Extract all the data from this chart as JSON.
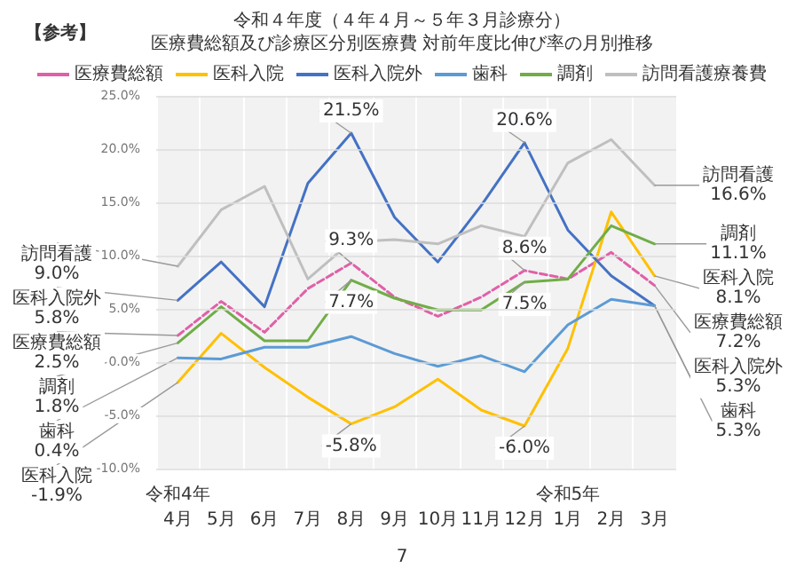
{
  "chart_data": {
    "type": "line",
    "title": "令和４年度（４年４月～５年３月診療分）",
    "subtitle": "医療費総額及び診療区分別医療費 対前年度比伸び率の月別推移",
    "annotations": [
      "【参考】",
      "7"
    ],
    "categories": [
      "令和4年\n4月",
      "5月",
      "6月",
      "7月",
      "8月",
      "9月",
      "10月",
      "11月",
      "12月",
      "令和5年\n1月",
      "2月",
      "3月"
    ],
    "series": [
      {
        "name": "医療費総額",
        "color": "#e060a8",
        "line_style": "dashed",
        "values": [
          2.5,
          5.7,
          2.8,
          6.9,
          9.3,
          6.1,
          4.3,
          6.1,
          8.6,
          7.8,
          10.3,
          7.2
        ],
        "value_labels": [
          "医療費総額\n2.5%",
          null,
          null,
          null,
          "9.3%",
          null,
          null,
          null,
          "8.6%",
          null,
          null,
          "医療費総額\n7.2%"
        ]
      },
      {
        "name": "医科入院",
        "color": "#ffc000",
        "values": [
          -1.9,
          2.7,
          -0.5,
          -3.3,
          -5.8,
          -4.2,
          -1.6,
          -4.5,
          -6.0,
          1.3,
          14.1,
          8.1
        ],
        "value_labels": [
          "医科入院\n-1.9%",
          null,
          null,
          null,
          "-5.8%",
          null,
          null,
          null,
          "-6.0%",
          null,
          null,
          "医科入院\n8.1%"
        ]
      },
      {
        "name": "医科入院外",
        "color": "#4472c4",
        "values": [
          5.8,
          9.4,
          5.2,
          16.8,
          21.5,
          13.6,
          9.4,
          14.7,
          20.6,
          12.4,
          8.1,
          5.3
        ],
        "value_labels": [
          "医科入院外\n5.8%",
          null,
          null,
          null,
          "21.5%",
          null,
          null,
          null,
          "20.6%",
          null,
          null,
          "医科入院外\n5.3%"
        ]
      },
      {
        "name": "歯科",
        "color": "#5b9bd5",
        "values": [
          0.4,
          0.3,
          1.4,
          1.4,
          2.4,
          0.8,
          -0.4,
          0.6,
          -0.9,
          3.5,
          5.9,
          5.3
        ],
        "value_labels": [
          "歯科\n0.4%",
          null,
          null,
          null,
          null,
          null,
          null,
          null,
          null,
          null,
          null,
          "歯科\n5.3%"
        ]
      },
      {
        "name": "調剤",
        "color": "#70ad47",
        "values": [
          1.8,
          5.2,
          2.0,
          2.0,
          7.7,
          6.0,
          4.9,
          4.9,
          7.5,
          7.8,
          12.8,
          11.1
        ],
        "value_labels": [
          "調剤\n1.8%",
          null,
          null,
          null,
          "7.7%",
          null,
          null,
          null,
          "7.5%",
          null,
          null,
          "調剤\n11.1%"
        ]
      },
      {
        "name": "訪問看護療養費",
        "color": "#bfbfbf",
        "values": [
          9.0,
          14.3,
          16.5,
          7.8,
          11.3,
          11.5,
          11.1,
          12.8,
          11.8,
          18.7,
          20.9,
          16.6
        ],
        "value_labels": [
          "訪問看護\n9.0%",
          null,
          null,
          null,
          null,
          null,
          null,
          null,
          null,
          null,
          null,
          "訪問看護\n16.6%"
        ]
      }
    ],
    "ylim": [
      -10,
      25
    ],
    "yticks": [
      {
        "value": -10,
        "label": "-10.0%"
      },
      {
        "value": -5,
        "label": "-5.0%"
      },
      {
        "value": 0,
        "label": "0.0%"
      },
      {
        "value": 5,
        "label": "5.0%"
      },
      {
        "value": 10,
        "label": "10.0%"
      },
      {
        "value": 15,
        "label": "15.0%"
      },
      {
        "value": 20,
        "label": "20.0%"
      },
      {
        "value": 25,
        "label": "25.0%"
      }
    ],
    "grid": true,
    "legend": "top",
    "marker": "none",
    "line_style": "solid"
  }
}
